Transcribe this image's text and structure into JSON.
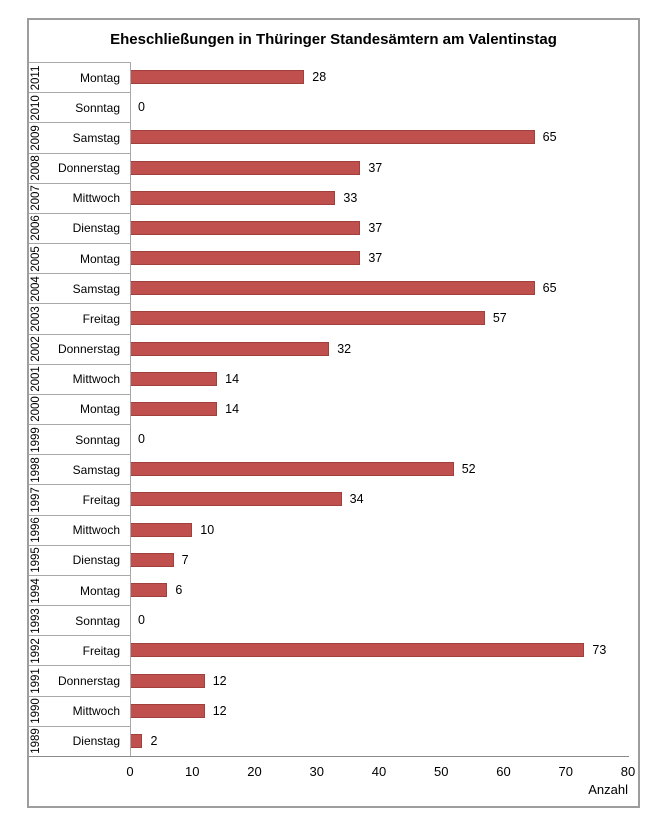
{
  "chart_data": {
    "type": "bar",
    "orientation": "horizontal",
    "title": "Eheschließungen in Thüringer Standesämtern am Valentinstag",
    "xlabel": "Anzahl",
    "xlim": [
      0,
      80
    ],
    "xticks": [
      0,
      10,
      20,
      30,
      40,
      50,
      60,
      70,
      80
    ],
    "grid": false,
    "legend": false,
    "bar_color": "#C0504D",
    "bar_border_color": "#A13F3C",
    "rows": [
      {
        "year": "2011",
        "day": "Montag",
        "value": 28
      },
      {
        "year": "2010",
        "day": "Sonntag",
        "value": 0
      },
      {
        "year": "2009",
        "day": "Samstag",
        "value": 65
      },
      {
        "year": "2008",
        "day": "Donnerstag",
        "value": 37
      },
      {
        "year": "2007",
        "day": "Mittwoch",
        "value": 33
      },
      {
        "year": "2006",
        "day": "Dienstag",
        "value": 37
      },
      {
        "year": "2005",
        "day": "Montag",
        "value": 37
      },
      {
        "year": "2004",
        "day": "Samstag",
        "value": 65
      },
      {
        "year": "2003",
        "day": "Freitag",
        "value": 57
      },
      {
        "year": "2002",
        "day": "Donnerstag",
        "value": 32
      },
      {
        "year": "2001",
        "day": "Mittwoch",
        "value": 14
      },
      {
        "year": "2000",
        "day": "Montag",
        "value": 14
      },
      {
        "year": "1999",
        "day": "Sonntag",
        "value": 0
      },
      {
        "year": "1998",
        "day": "Samstag",
        "value": 52
      },
      {
        "year": "1997",
        "day": "Freitag",
        "value": 34
      },
      {
        "year": "1996",
        "day": "Mittwoch",
        "value": 10
      },
      {
        "year": "1995",
        "day": "Dienstag",
        "value": 7
      },
      {
        "year": "1994",
        "day": "Montag",
        "value": 6
      },
      {
        "year": "1993",
        "day": "Sonntag",
        "value": 0
      },
      {
        "year": "1992",
        "day": "Freitag",
        "value": 73
      },
      {
        "year": "1991",
        "day": "Donnerstag",
        "value": 12
      },
      {
        "year": "1990",
        "day": "Mittwoch",
        "value": 12
      },
      {
        "year": "1989",
        "day": "Dienstag",
        "value": 2
      }
    ]
  }
}
